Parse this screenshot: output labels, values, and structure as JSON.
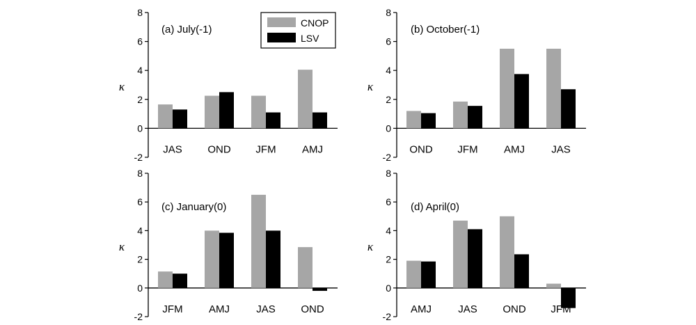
{
  "chart_data": [
    {
      "type": "bar",
      "title": "(a) July(-1)",
      "ylabel": "κ",
      "ylim": [
        -2,
        8
      ],
      "yticks": [
        -2,
        0,
        2,
        4,
        6,
        8
      ],
      "categories": [
        "JAS",
        "OND",
        "JFM",
        "AMJ"
      ],
      "series": [
        {
          "name": "CNOP",
          "color": "#a6a6a6",
          "values": [
            1.65,
            2.25,
            2.25,
            4.05
          ]
        },
        {
          "name": "LSV",
          "color": "#000000",
          "values": [
            1.3,
            2.5,
            1.1,
            1.1
          ]
        }
      ],
      "legend": "top-right"
    },
    {
      "type": "bar",
      "title": "(b) October(-1)",
      "ylabel": "κ",
      "ylim": [
        -2,
        8
      ],
      "yticks": [
        -2,
        0,
        2,
        4,
        6,
        8
      ],
      "categories": [
        "OND",
        "JFM",
        "AMJ",
        "JAS"
      ],
      "series": [
        {
          "name": "CNOP",
          "color": "#a6a6a6",
          "values": [
            1.2,
            1.85,
            5.5,
            5.5
          ]
        },
        {
          "name": "LSV",
          "color": "#000000",
          "values": [
            1.05,
            1.55,
            3.75,
            2.7
          ]
        }
      ]
    },
    {
      "type": "bar",
      "title": "(c) January(0)",
      "ylabel": "κ",
      "ylim": [
        -2,
        8
      ],
      "yticks": [
        -2,
        0,
        2,
        4,
        6,
        8
      ],
      "categories": [
        "JFM",
        "AMJ",
        "JAS",
        "OND"
      ],
      "series": [
        {
          "name": "CNOP",
          "color": "#a6a6a6",
          "values": [
            1.15,
            4.0,
            6.5,
            2.85
          ]
        },
        {
          "name": "LSV",
          "color": "#000000",
          "values": [
            1.0,
            3.85,
            4.0,
            -0.2
          ]
        }
      ]
    },
    {
      "type": "bar",
      "title": "(d) April(0)",
      "ylabel": "κ",
      "ylim": [
        -2,
        8
      ],
      "yticks": [
        -2,
        0,
        2,
        4,
        6,
        8
      ],
      "categories": [
        "AMJ",
        "JAS",
        "OND",
        "JFM"
      ],
      "series": [
        {
          "name": "CNOP",
          "color": "#a6a6a6",
          "values": [
            1.9,
            4.7,
            5.0,
            0.3
          ]
        },
        {
          "name": "LSV",
          "color": "#000000",
          "values": [
            1.85,
            4.1,
            2.35,
            -1.4
          ]
        }
      ]
    }
  ]
}
